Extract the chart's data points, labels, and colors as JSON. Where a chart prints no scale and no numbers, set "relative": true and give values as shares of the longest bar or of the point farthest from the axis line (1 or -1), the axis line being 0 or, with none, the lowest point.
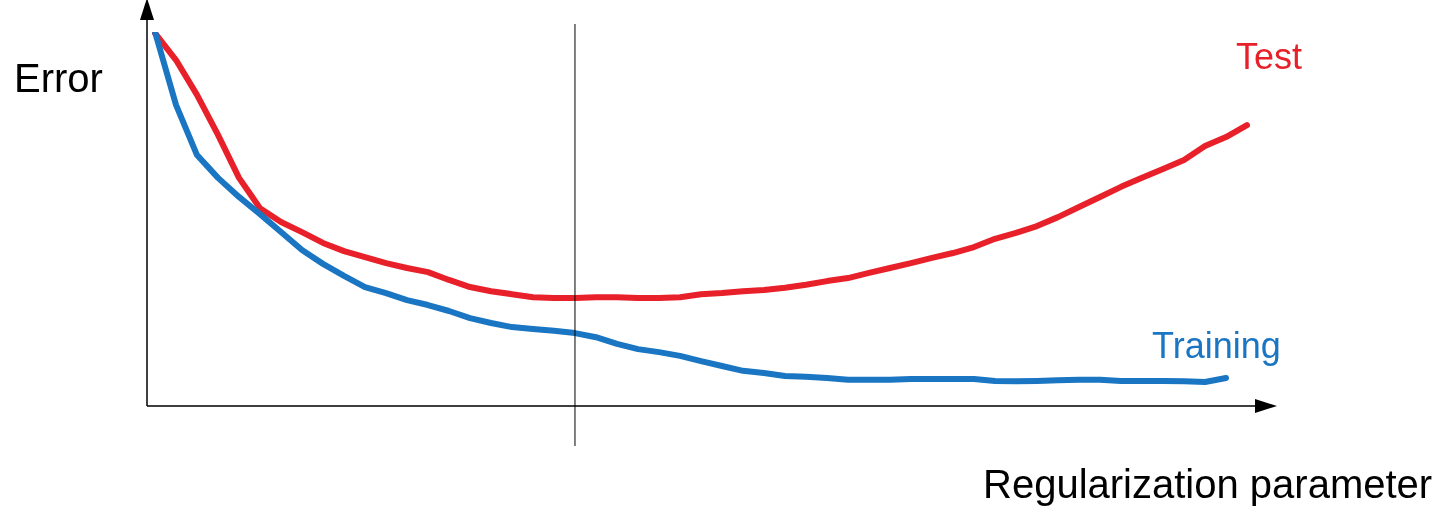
{
  "chart_data": {
    "type": "line",
    "relative": true,
    "xlabel": "Regularization parameter",
    "ylabel": "Error",
    "categories": [
      null,
      null,
      null,
      null,
      null,
      null,
      null,
      null,
      null,
      null,
      null,
      null,
      null,
      null,
      null,
      null,
      null,
      null,
      null,
      null,
      null,
      null,
      null,
      null,
      null,
      null,
      null,
      null,
      null,
      null,
      null,
      null,
      null,
      null,
      null,
      null,
      null,
      null,
      null,
      null,
      null,
      null,
      null,
      null,
      null,
      null,
      null,
      null,
      null,
      null,
      null,
      null,
      null
    ],
    "series": [
      {
        "name": "Training",
        "color": "#1a75c2",
        "values": [
          1.0,
          0.805,
          0.671,
          0.61,
          0.559,
          0.513,
          0.465,
          0.417,
          0.38,
          0.348,
          0.318,
          0.302,
          0.283,
          0.27,
          0.254,
          0.235,
          0.222,
          0.211,
          0.206,
          0.201,
          0.195,
          0.184,
          0.166,
          0.152,
          0.144,
          0.134,
          0.12,
          0.107,
          0.094,
          0.088,
          0.08,
          0.078,
          0.075,
          0.07,
          0.07,
          0.07,
          0.072,
          0.072,
          0.072,
          0.072,
          0.067,
          0.066,
          0.067,
          0.069,
          0.07,
          0.07,
          0.067,
          0.067,
          0.067,
          0.066,
          0.064,
          0.075,
          null
        ]
      },
      {
        "name": "Test",
        "color": "#e8202a",
        "values": [
          0.997,
          0.925,
          0.832,
          0.725,
          0.61,
          0.529,
          0.492,
          0.465,
          0.436,
          0.414,
          0.398,
          0.382,
          0.369,
          0.358,
          0.337,
          0.318,
          0.307,
          0.299,
          0.291,
          0.289,
          0.289,
          0.291,
          0.291,
          0.289,
          0.289,
          0.291,
          0.299,
          0.302,
          0.307,
          0.31,
          0.316,
          0.324,
          0.334,
          0.342,
          0.356,
          0.369,
          0.382,
          0.396,
          0.409,
          0.425,
          0.447,
          0.463,
          0.481,
          0.505,
          0.532,
          0.559,
          0.586,
          0.61,
          0.634,
          0.658,
          0.695,
          0.719,
          0.751
        ]
      }
    ],
    "grid": false,
    "legend": false,
    "marker": "none",
    "line_style": "solid"
  }
}
